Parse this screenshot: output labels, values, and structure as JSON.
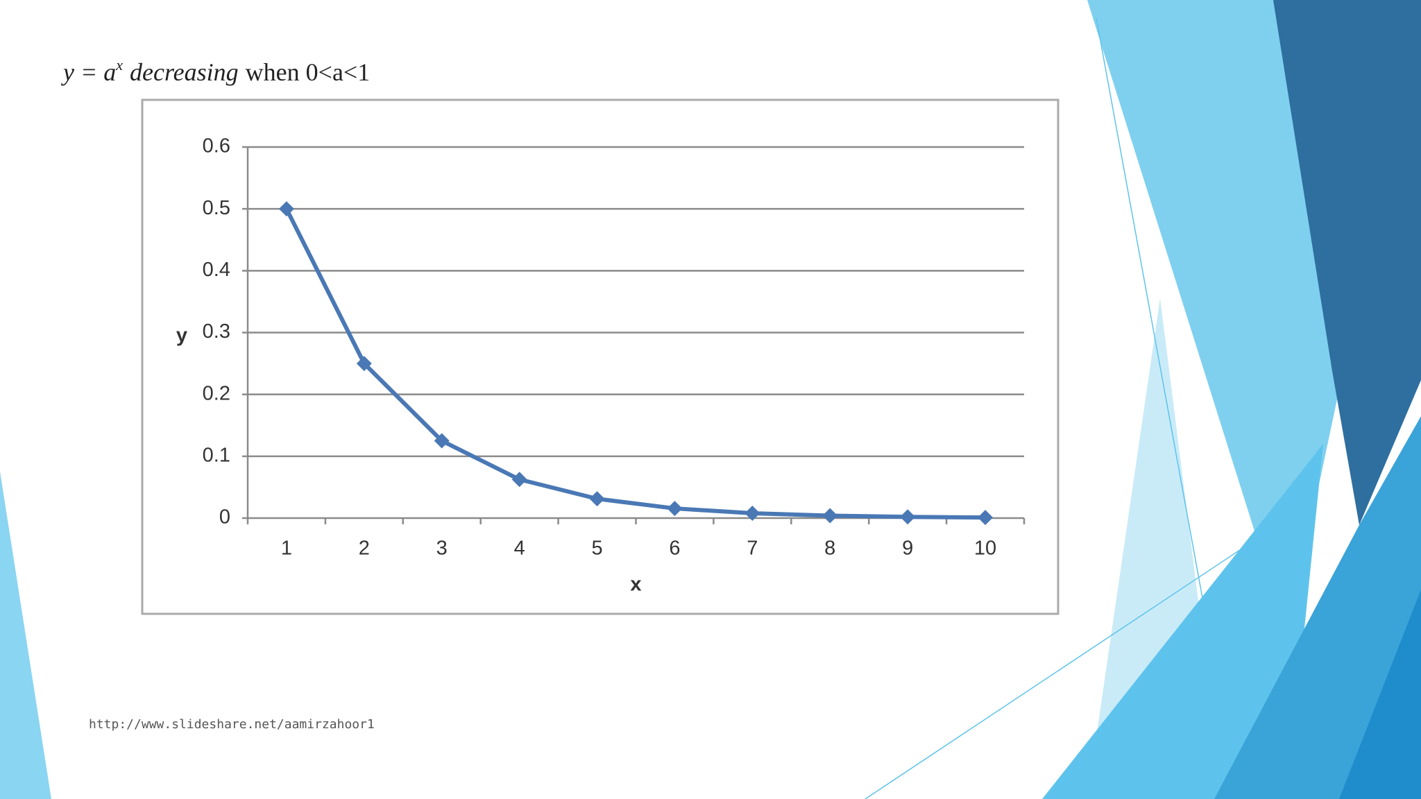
{
  "chart_data": {
    "type": "line",
    "title_parts": [
      "y = a",
      "x",
      "decreasing",
      "when 0<a<1"
    ],
    "x_label": "x",
    "y_label": "y",
    "categories": [
      "1",
      "2",
      "3",
      "4",
      "5",
      "6",
      "7",
      "8",
      "9",
      "10"
    ],
    "values": [
      0.5,
      0.25,
      0.125,
      0.0625,
      0.03125,
      0.015625,
      0.0078125,
      0.00390625,
      0.001953125,
      0.0009765625
    ],
    "color": "#4a78b5",
    "ylim": [
      0,
      0.6
    ],
    "yticks": [
      0,
      0.1,
      0.2,
      0.3,
      0.4,
      0.5,
      0.6
    ],
    "grid": true
  },
  "source": "http://www.slideshare.net/aamirzahoor1"
}
